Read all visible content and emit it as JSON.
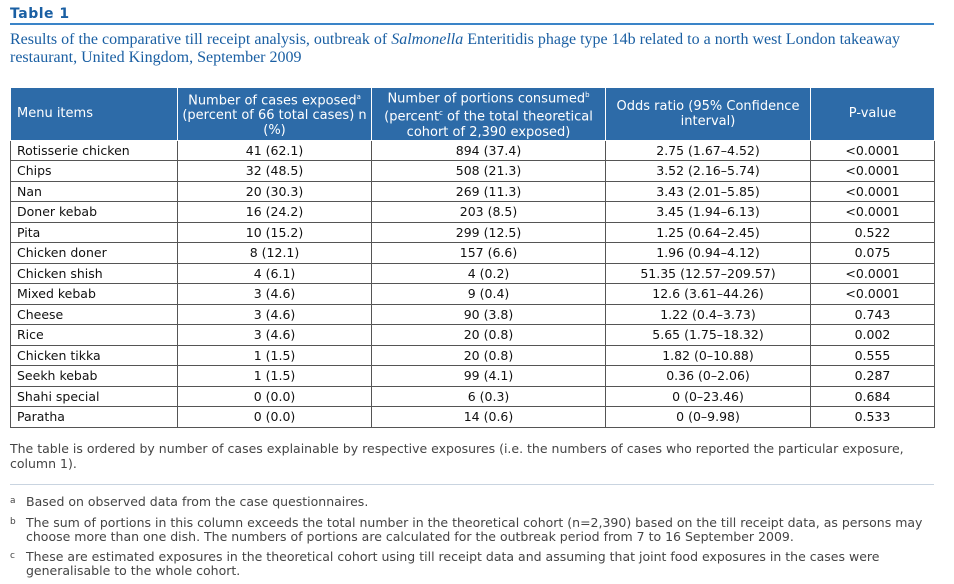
{
  "table_label": "Table 1",
  "title_before": "Results of the comparative till receipt analysis, outbreak of ",
  "title_italic": "Salmonella",
  "title_after": " Enteritidis phage type 14b related to a north west London takeaway restaurant, United Kingdom, September 2009",
  "header": {
    "col1": "Menu items",
    "col2_line1": "Number of cases exposed",
    "col2_sup": "a",
    "col2_rest": "(percent of 66 total cases) n (%)",
    "col3_line1": "Number of portions consumed",
    "col3_sup": "b",
    "col3_mid1": "(percent",
    "col3_sup2": "c",
    "col3_rest": " of the total theoretical cohort of 2,390 exposed)",
    "col4": "Odds ratio (95% Confidence interval)",
    "col5": "P-value"
  },
  "rows": [
    {
      "item": "Rotisserie chicken",
      "cases": "41 (62.1)",
      "portions": "894 (37.4)",
      "or": "2.75 (1.67–4.52)",
      "p": "<0.0001"
    },
    {
      "item": "Chips",
      "cases": "32 (48.5)",
      "portions": "508 (21.3)",
      "or": "3.52 (2.16–5.74)",
      "p": "<0.0001"
    },
    {
      "item": "Nan",
      "cases": "20 (30.3)",
      "portions": "269 (11.3)",
      "or": "3.43 (2.01–5.85)",
      "p": "<0.0001"
    },
    {
      "item": "Doner kebab",
      "cases": "16 (24.2)",
      "portions": "203 (8.5)",
      "or": "3.45 (1.94–6.13)",
      "p": "<0.0001"
    },
    {
      "item": "Pita",
      "cases": "10 (15.2)",
      "portions": "299 (12.5)",
      "or": "1.25 (0.64–2.45)",
      "p": "0.522"
    },
    {
      "item": "Chicken doner",
      "cases": "8 (12.1)",
      "portions": "157 (6.6)",
      "or": "1.96 (0.94–4.12)",
      "p": "0.075"
    },
    {
      "item": "Chicken shish",
      "cases": "4 (6.1)",
      "portions": "4 (0.2)",
      "or": "51.35 (12.57–209.57)",
      "p": "<0.0001"
    },
    {
      "item": "Mixed kebab",
      "cases": "3 (4.6)",
      "portions": "9 (0.4)",
      "or": "12.6 (3.61–44.26)",
      "p": "<0.0001"
    },
    {
      "item": "Cheese",
      "cases": "3 (4.6)",
      "portions": "90 (3.8)",
      "or": "1.22 (0.4–3.73)",
      "p": "0.743"
    },
    {
      "item": "Rice",
      "cases": "3 (4.6)",
      "portions": "20 (0.8)",
      "or": "5.65 (1.75–18.32)",
      "p": "0.002"
    },
    {
      "item": "Chicken tikka",
      "cases": "1 (1.5)",
      "portions": "20 (0.8)",
      "or": "1.82 (0–10.88)",
      "p": "0.555"
    },
    {
      "item": "Seekh kebab",
      "cases": "1 (1.5)",
      "portions": "99 (4.1)",
      "or": "0.36 (0–2.06)",
      "p": "0.287"
    },
    {
      "item": "Shahi special",
      "cases": "0 (0.0)",
      "portions": "6 (0.3)",
      "or": "0 (0–23.46)",
      "p": "0.684"
    },
    {
      "item": "Paratha",
      "cases": "0 (0.0)",
      "portions": "14 (0.6)",
      "or": "0 (0–9.98)",
      "p": "0.533"
    }
  ],
  "note": "The table is ordered by number of cases explainable by respective exposures (i.e. the numbers of cases who reported the particular exposure, column 1).",
  "footnotes": [
    {
      "mark": "a",
      "text": "Based on observed data from the case questionnaires."
    },
    {
      "mark": "b",
      "text": "The sum of portions in this column exceeds the total number in the theoretical cohort (n=2,390) based on the till receipt data, as persons may choose more than one dish. The numbers of portions are calculated for the outbreak period from 7 to 16 September 2009."
    },
    {
      "mark": "c",
      "text": "These are estimated exposures in the theoretical cohort using till receipt data and assuming that joint food exposures in the cases were generalisable to the whole cohort."
    }
  ],
  "colors": {
    "accent": "#1a5fa3",
    "header_bg": "#2d6ba8",
    "rule": "#3a84c8"
  }
}
